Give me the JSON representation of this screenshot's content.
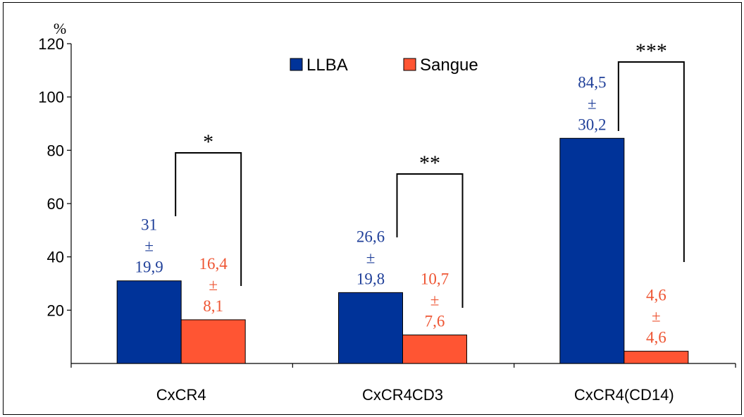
{
  "chart_data": {
    "type": "bar",
    "y_unit": "%",
    "categories": [
      "CxCR4",
      "CxCR4CD3",
      "CxCR4(CD14)"
    ],
    "ylim": [
      0,
      120
    ],
    "yticks": [
      20,
      40,
      60,
      80,
      100,
      120
    ],
    "grid": false,
    "legend_placement": "top-center",
    "series": [
      {
        "name": "LLBA",
        "color": "#003399",
        "label_color": "#1F3F99",
        "values": [
          31,
          26.6,
          84.5
        ],
        "labels": [
          [
            "31",
            "±",
            "19,9"
          ],
          [
            "26,6",
            "±",
            "19,8"
          ],
          [
            "84,5",
            "±",
            "30,2"
          ]
        ]
      },
      {
        "name": "Sangue",
        "color": "#FF5533",
        "label_color": "#EE5533",
        "values": [
          16.4,
          10.7,
          4.6
        ],
        "labels": [
          [
            "16,4",
            "±",
            "8,1"
          ],
          [
            "10,7",
            "±",
            "7,6"
          ],
          [
            "4,6",
            "±",
            "4,6"
          ]
        ]
      }
    ],
    "significance": [
      "*",
      "**",
      "***"
    ]
  }
}
